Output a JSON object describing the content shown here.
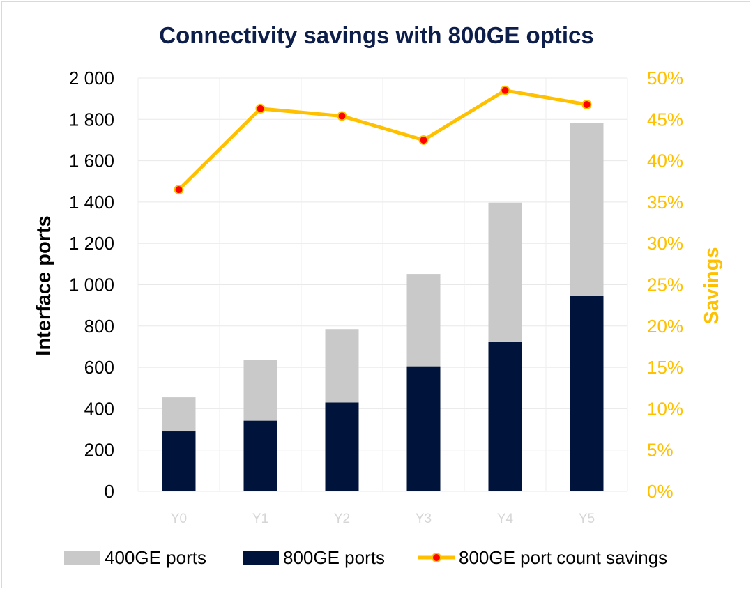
{
  "chart_data": {
    "type": "bar",
    "title": "Connectivity savings with 800GE optics",
    "categories": [
      "Y0",
      "Y1",
      "Y2",
      "Y3",
      "Y4",
      "Y5"
    ],
    "stacked": true,
    "series": [
      {
        "name": "800GE ports",
        "kind": "bar",
        "axis": "left",
        "color": "#00133a",
        "values": [
          290,
          342,
          430,
          605,
          722,
          948
        ]
      },
      {
        "name": "400GE ports",
        "kind": "bar",
        "axis": "left",
        "color": "#c9c9c9",
        "values": [
          165,
          293,
          355,
          447,
          675,
          833
        ]
      },
      {
        "name": "800GE port count savings",
        "kind": "line",
        "axis": "right",
        "color": "#ffc000",
        "marker_color": "#ff0000",
        "values": [
          36.5,
          46.3,
          45.4,
          42.5,
          48.5,
          46.8
        ]
      }
    ],
    "legend_order": [
      "400GE ports",
      "800GE ports",
      "800GE port count savings"
    ],
    "y_left": {
      "label": "Interface ports",
      "min": 0,
      "max": 2000,
      "ticks": [
        0,
        200,
        400,
        600,
        800,
        1000,
        1200,
        1400,
        1600,
        1800,
        2000
      ],
      "tick_labels": [
        "0",
        "200",
        "400",
        "600",
        "800",
        "1 000",
        "1 200",
        "1 400",
        "1 600",
        "1 800",
        "2 000"
      ]
    },
    "y_right": {
      "label": "Savings",
      "min": 0,
      "max": 50,
      "ticks": [
        0,
        5,
        10,
        15,
        20,
        25,
        30,
        35,
        40,
        45,
        50
      ],
      "tick_labels": [
        "0%",
        "5%",
        "10%",
        "15%",
        "20%",
        "25%",
        "30%",
        "35%",
        "40%",
        "45%",
        "50%"
      ],
      "color": "#ffc000"
    },
    "grid": true,
    "legend_position": "bottom"
  }
}
